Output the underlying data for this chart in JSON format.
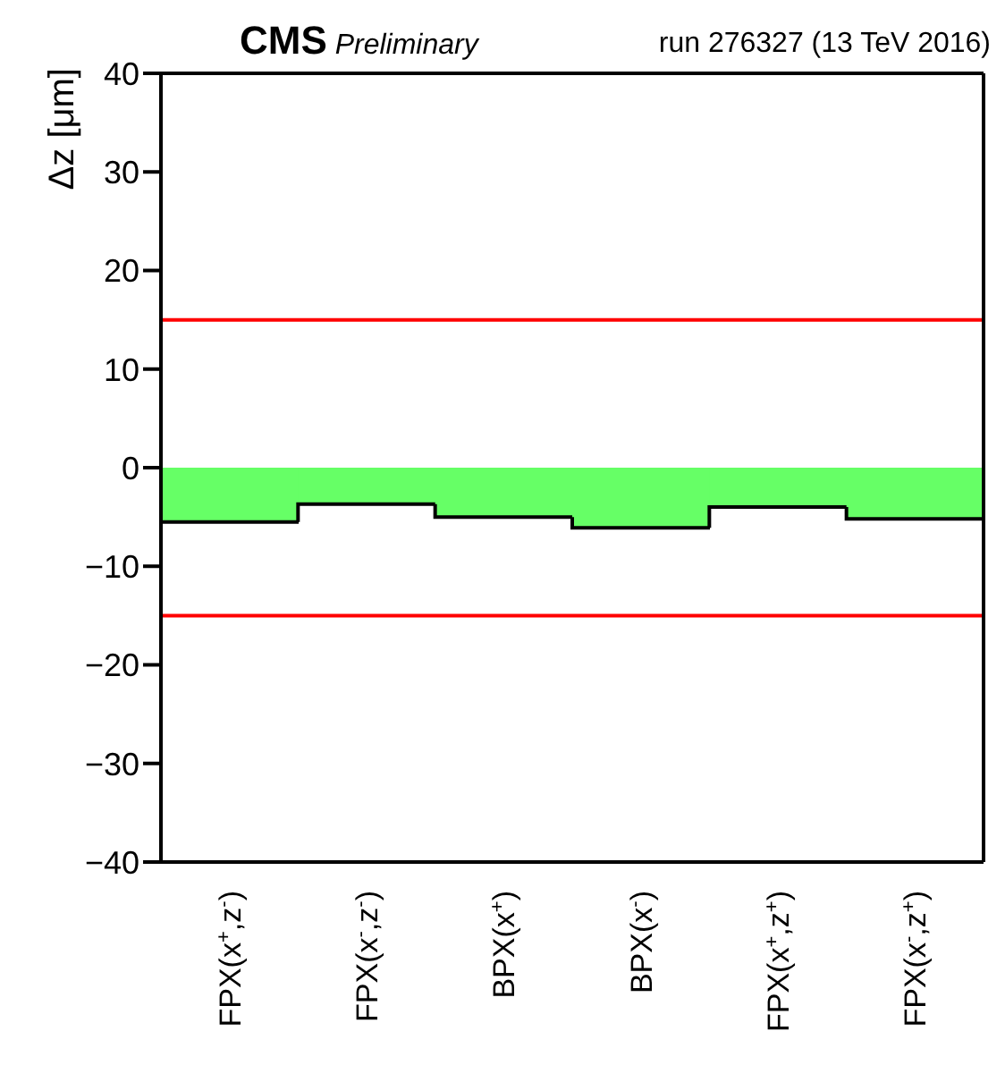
{
  "chart_data": {
    "type": "bar",
    "title": "CMS Preliminary",
    "subtitle": "run 276327 (13 TeV 2016)",
    "ylabel": "Δz [μm]",
    "categories": [
      "FPX(x$^{+}$,z$^{-}$)",
      "FPX(x$^{-}$,z$^{-}$)",
      "BPX(x$^{+}$)",
      "BPX(x$^{-}$)",
      "FPX(x$^{+}$,z$^{+}$)",
      "FPX(x$^{-}$,z$^{+}$)"
    ],
    "values": [
      -5.5,
      -3.7,
      -5.0,
      -6.1,
      -4.0,
      -5.2
    ],
    "color": "#66ff66",
    "ylim": [
      -40,
      40
    ],
    "yticks": [
      -40,
      -30,
      -20,
      -10,
      0,
      10,
      20,
      30,
      40
    ],
    "ref_lines": [
      {
        "axis": "y",
        "value": 15,
        "color": "#ff0000"
      },
      {
        "axis": "y",
        "value": -15,
        "color": "#ff0000"
      }
    ],
    "grid": false
  }
}
